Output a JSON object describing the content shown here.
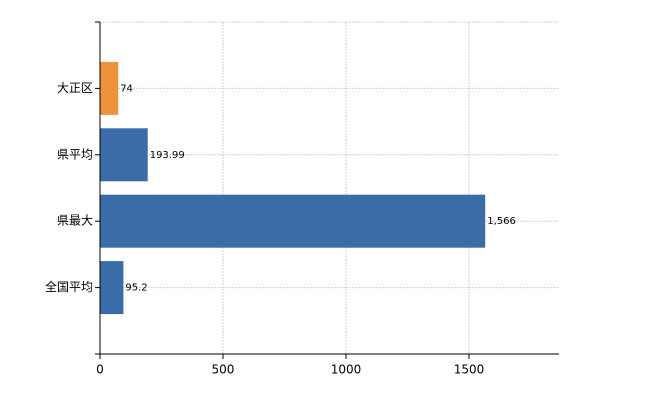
{
  "chart_data": {
    "type": "hbar",
    "categories": [
      "大正区",
      "県平均",
      "県最大",
      "全国平均"
    ],
    "values": [
      74,
      193.99,
      1566,
      95.2
    ],
    "value_labels": [
      "74",
      "193.99",
      "1,566",
      "95.2"
    ],
    "colors": [
      "#f0923a",
      "#3a6ca8",
      "#3a6ca8",
      "#3a6ca8"
    ],
    "xlim": [
      0,
      1866
    ],
    "xticks": [
      0,
      500,
      1000,
      1500
    ],
    "grid": true
  }
}
